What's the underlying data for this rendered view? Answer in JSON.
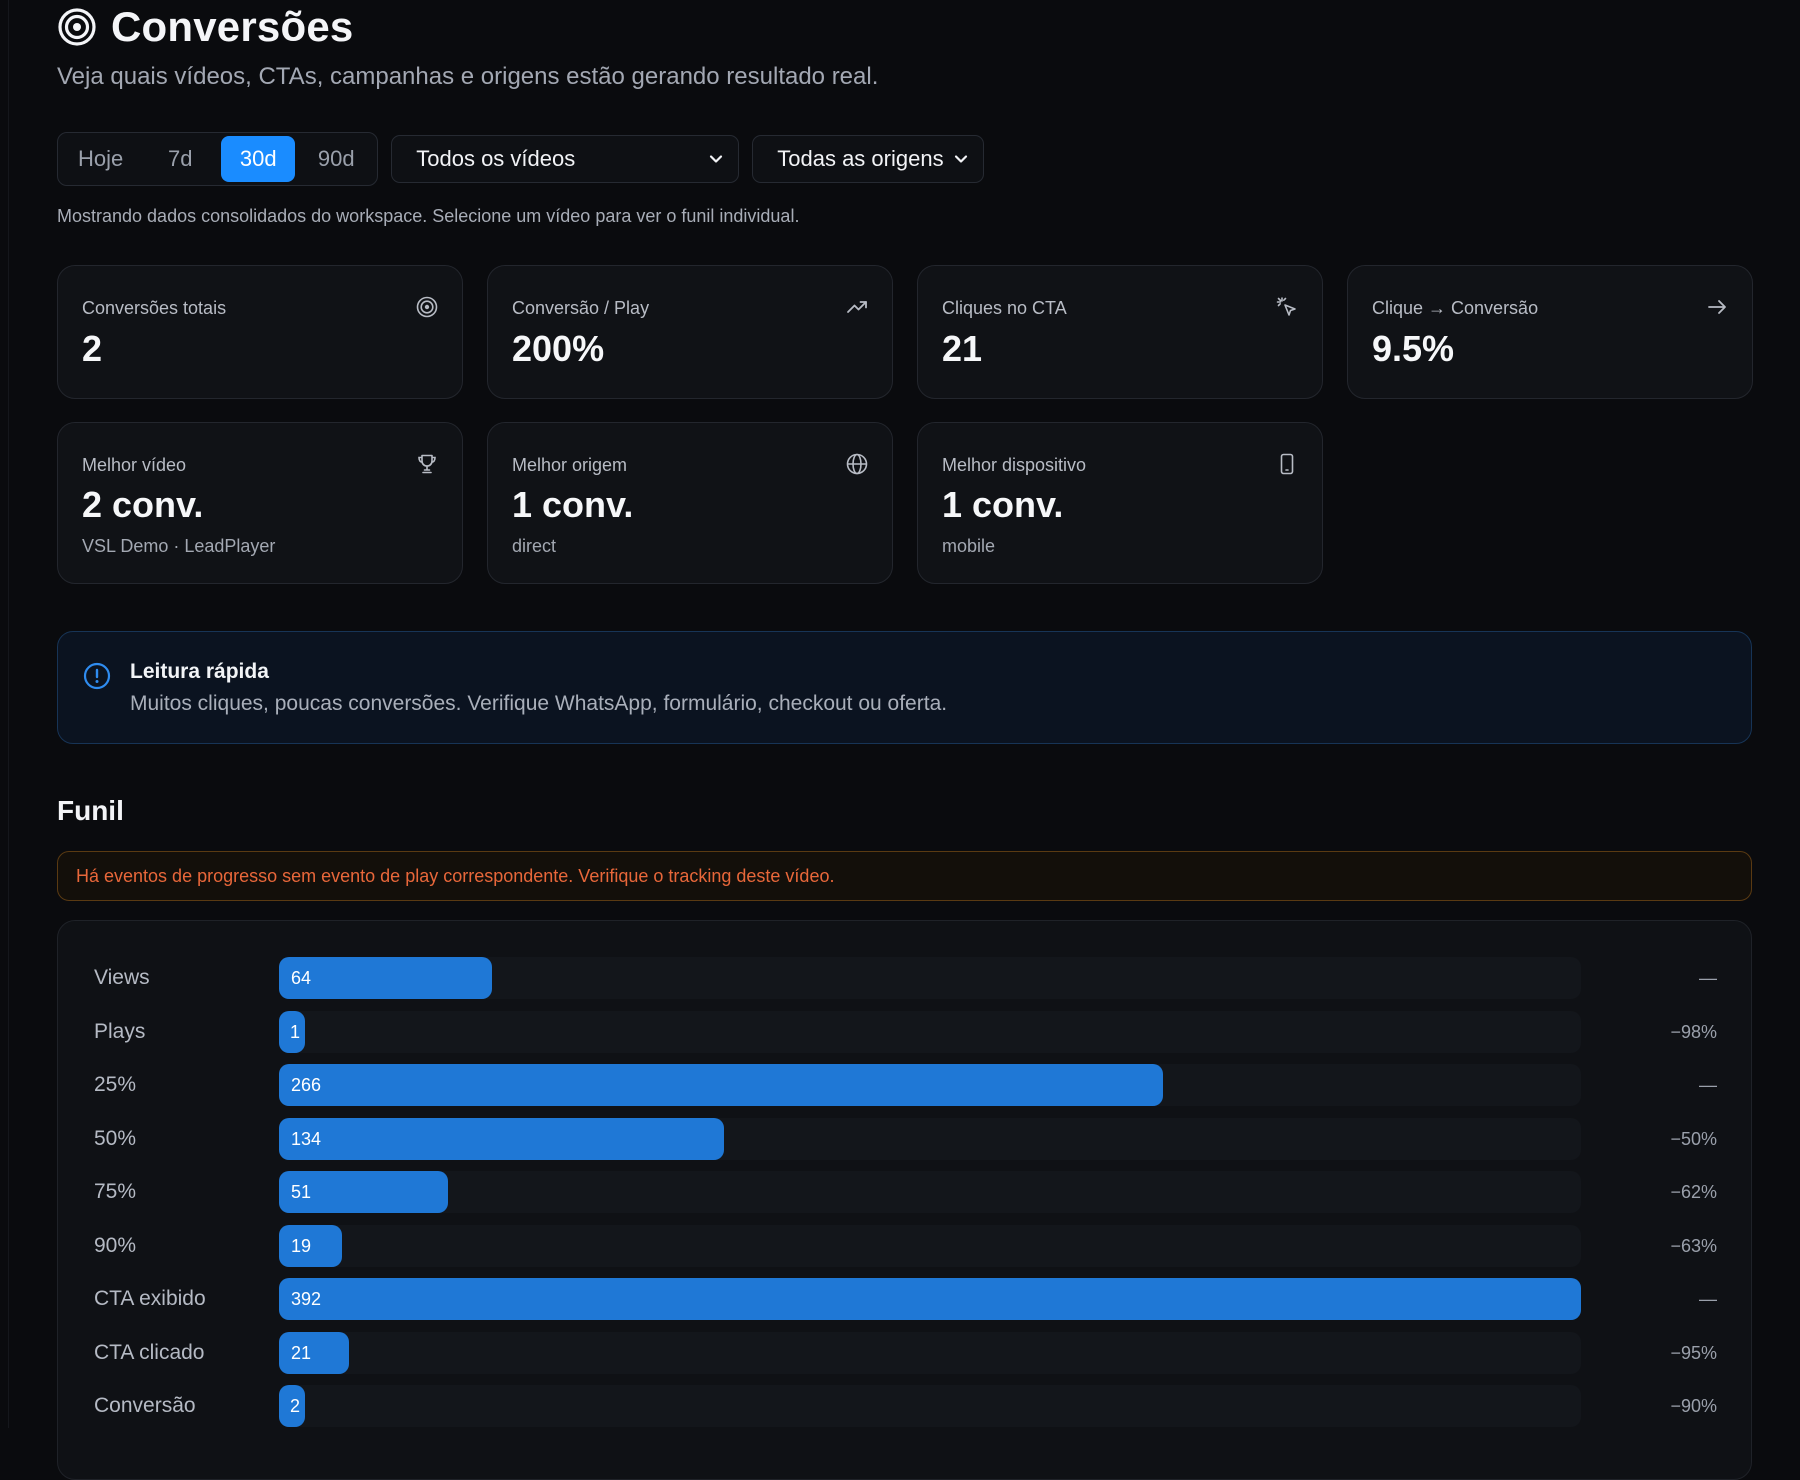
{
  "header": {
    "icon": "target-icon",
    "title": "Conversões",
    "subtitle": "Veja quais vídeos, CTAs, campanhas e origens estão gerando resultado real."
  },
  "filters": {
    "periods": [
      "Hoje",
      "7d",
      "30d",
      "90d"
    ],
    "active_period": "30d",
    "video_select": "Todos os vídeos",
    "origin_select": "Todas as origens"
  },
  "hint": "Mostrando dados consolidados do workspace. Selecione um vídeo para ver o funil individual.",
  "stats": [
    {
      "label": "Conversões totais",
      "value": "2",
      "icon": "target-icon"
    },
    {
      "label": "Conversão / Play",
      "value": "200%",
      "icon": "trending-up-icon"
    },
    {
      "label": "Cliques no CTA",
      "value": "21",
      "icon": "cursor-click-icon"
    },
    {
      "label": "Clique → Conversão",
      "value": "9.5%",
      "icon": "arrow-right-icon"
    }
  ],
  "best": [
    {
      "label": "Melhor vídeo",
      "value": "2 conv.",
      "sub": "VSL Demo · LeadPlayer",
      "icon": "trophy-icon"
    },
    {
      "label": "Melhor origem",
      "value": "1 conv.",
      "sub": "direct",
      "icon": "globe-icon"
    },
    {
      "label": "Melhor dispositivo",
      "value": "1 conv.",
      "sub": "mobile",
      "icon": "smartphone-icon"
    }
  ],
  "info": {
    "icon": "info-icon",
    "heading": "Leitura rápida",
    "text": "Muitos cliques, poucas conversões. Verifique WhatsApp, formulário, checkout ou oferta."
  },
  "funnel": {
    "title": "Funil",
    "warning": "Há eventos de progresso sem evento de play correspondente. Verifique o tracking deste vídeo.",
    "rows": [
      {
        "label": "Views",
        "value": "64",
        "change": "—"
      },
      {
        "label": "Plays",
        "value": "1",
        "change": "−98%"
      },
      {
        "label": "25%",
        "value": "266",
        "change": "—"
      },
      {
        "label": "50%",
        "value": "134",
        "change": "−50%"
      },
      {
        "label": "75%",
        "value": "51",
        "change": "−62%"
      },
      {
        "label": "90%",
        "value": "19",
        "change": "−63%"
      },
      {
        "label": "CTA exibido",
        "value": "392",
        "change": "—"
      },
      {
        "label": "CTA clicado",
        "value": "21",
        "change": "−95%"
      },
      {
        "label": "Conversão",
        "value": "2",
        "change": "−90%"
      }
    ]
  },
  "colors": {
    "accent": "#1a8cff",
    "bar": "#1f78d6",
    "warning": "#e8673a"
  }
}
